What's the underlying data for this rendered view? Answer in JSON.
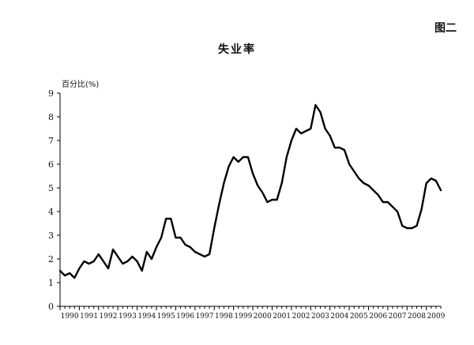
{
  "figure_label": "图二",
  "chart_data": {
    "type": "line",
    "title": "失业率",
    "ylabel": "百分比(%)",
    "xlabel": "",
    "ylim": [
      0,
      9
    ],
    "yticks": [
      0,
      1,
      2,
      3,
      4,
      5,
      6,
      7,
      8,
      9
    ],
    "xlim": [
      1990,
      2009.75
    ],
    "xticks": [
      "1990",
      "1991",
      "1992",
      "1993",
      "1994",
      "1995",
      "1996",
      "1997",
      "1998",
      "1999",
      "2000",
      "2001",
      "2002",
      "2003",
      "2004",
      "2005",
      "2006",
      "2007",
      "2008",
      "2009"
    ],
    "grid": false,
    "series": [
      {
        "x": [
          1990.0,
          1990.25,
          1990.5,
          1990.75,
          1991.0,
          1991.25,
          1991.5,
          1991.75,
          1992.0,
          1992.25,
          1992.5,
          1992.75,
          1993.0,
          1993.25,
          1993.5,
          1993.75,
          1994.0,
          1994.25,
          1994.5,
          1994.75,
          1995.0,
          1995.25,
          1995.5,
          1995.75,
          1996.0,
          1996.25,
          1996.5,
          1996.75,
          1997.0,
          1997.25,
          1997.5,
          1997.75,
          1998.0,
          1998.25,
          1998.5,
          1998.75,
          1999.0,
          1999.25,
          1999.5,
          1999.75,
          2000.0,
          2000.25,
          2000.5,
          2000.75,
          2001.0,
          2001.25,
          2001.5,
          2001.75,
          2002.0,
          2002.25,
          2002.5,
          2002.75,
          2003.0,
          2003.25,
          2003.5,
          2003.75,
          2004.0,
          2004.25,
          2004.5,
          2004.75,
          2005.0,
          2005.25,
          2005.5,
          2005.75,
          2006.0,
          2006.25,
          2006.5,
          2006.75,
          2007.0,
          2007.25,
          2007.5,
          2007.75,
          2008.0,
          2008.25,
          2008.5,
          2008.75,
          2009.0,
          2009.25,
          2009.5,
          2009.75
        ],
        "values": [
          1.5,
          1.3,
          1.4,
          1.2,
          1.6,
          1.9,
          1.8,
          1.9,
          2.2,
          1.9,
          1.6,
          2.4,
          2.1,
          1.8,
          1.9,
          2.1,
          1.9,
          1.5,
          2.3,
          2.0,
          2.5,
          2.9,
          3.7,
          3.7,
          2.9,
          2.9,
          2.6,
          2.5,
          2.3,
          2.2,
          2.1,
          2.2,
          3.3,
          4.3,
          5.2,
          5.9,
          6.3,
          6.1,
          6.3,
          6.3,
          5.6,
          5.1,
          4.8,
          4.4,
          4.5,
          4.5,
          5.2,
          6.3,
          7.0,
          7.5,
          7.3,
          7.4,
          7.5,
          8.5,
          8.2,
          7.5,
          7.2,
          6.7,
          6.7,
          6.6,
          6.0,
          5.7,
          5.4,
          5.2,
          5.1,
          4.9,
          4.7,
          4.4,
          4.4,
          4.2,
          4.0,
          3.4,
          3.3,
          3.3,
          3.4,
          4.1,
          5.2,
          5.4,
          5.3,
          4.9
        ]
      }
    ]
  }
}
